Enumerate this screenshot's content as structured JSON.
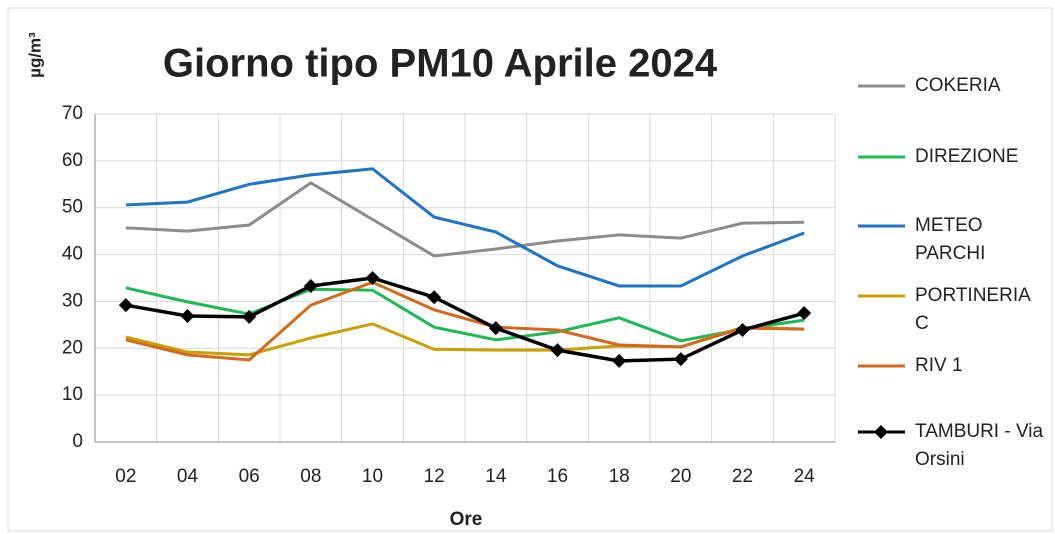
{
  "chart_data": {
    "type": "line",
    "title": "Giorno tipo PM10  Aprile 2024",
    "y_label": "µg/m³",
    "x_label": "Ore",
    "categories": [
      "02",
      "04",
      "06",
      "08",
      "10",
      "12",
      "14",
      "16",
      "18",
      "20",
      "22",
      "24"
    ],
    "ylim": [
      0,
      70
    ],
    "yticks": [
      0,
      10,
      20,
      30,
      40,
      50,
      60,
      70
    ],
    "grid": true,
    "legend": "right",
    "series": [
      {
        "name": "COKERIA",
        "color": "#8c8c8c",
        "values": [
          45.7,
          45.0,
          46.3,
          55.3,
          47.5,
          39.7,
          41.2,
          42.9,
          44.2,
          43.5,
          46.7,
          46.9
        ]
      },
      {
        "name": "DIREZIONE",
        "color": "#1db954",
        "values": [
          32.9,
          29.9,
          27.3,
          32.6,
          32.4,
          24.5,
          21.8,
          23.5,
          26.5,
          21.6,
          24.1,
          26.0
        ]
      },
      {
        "name": "METEO PARCHI",
        "color": "#1f73c8",
        "values": [
          50.6,
          51.2,
          55.0,
          57.0,
          58.3,
          48.0,
          44.8,
          37.6,
          33.3,
          33.3,
          39.7,
          44.6
        ]
      },
      {
        "name": "PORTINERIA C",
        "color": "#c9a000",
        "values": [
          22.4,
          19.2,
          18.6,
          22.2,
          25.2,
          19.8,
          19.6,
          19.6,
          20.5,
          20.3,
          24.5,
          24.1
        ]
      },
      {
        "name": "RIV 1",
        "color": "#d2691e",
        "values": [
          21.8,
          18.6,
          17.5,
          29.2,
          34.1,
          28.2,
          24.5,
          23.9,
          20.7,
          20.3,
          24.3,
          24.1
        ]
      },
      {
        "name": "TAMBURI - Via Orsini",
        "color": "#000000",
        "marker": "diamond",
        "values": [
          29.2,
          26.9,
          26.7,
          33.3,
          35.0,
          30.9,
          24.3,
          19.6,
          17.3,
          17.7,
          23.9,
          27.5
        ]
      }
    ]
  }
}
